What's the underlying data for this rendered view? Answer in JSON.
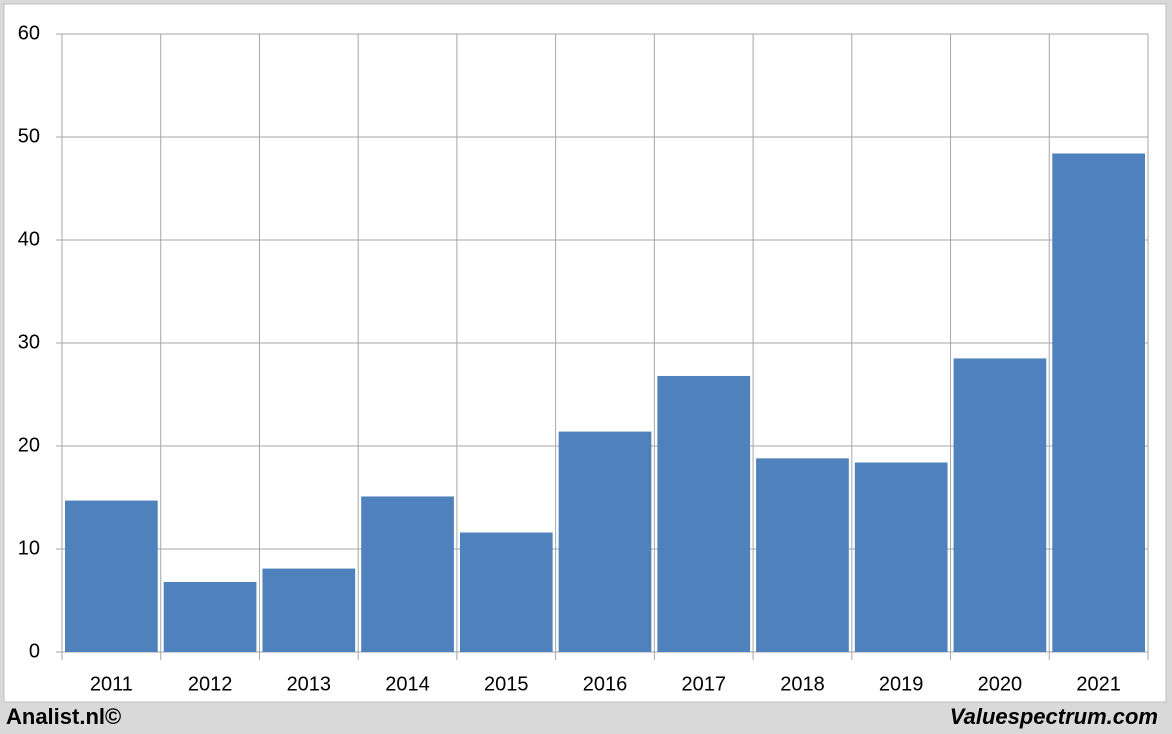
{
  "chart_data": {
    "type": "bar",
    "categories": [
      "2011",
      "2012",
      "2013",
      "2014",
      "2015",
      "2016",
      "2017",
      "2018",
      "2019",
      "2020",
      "2021"
    ],
    "values": [
      14.7,
      6.8,
      8.1,
      15.1,
      11.6,
      21.4,
      26.8,
      18.8,
      18.4,
      28.5,
      48.4
    ],
    "color": "#4f81bd",
    "ylim": [
      0,
      60
    ],
    "yticks": [
      0,
      10,
      20,
      30,
      40,
      50,
      60
    ],
    "grid": true
  },
  "footer": {
    "left": "Analist.nl©",
    "right": "Valuespectrum.com"
  }
}
